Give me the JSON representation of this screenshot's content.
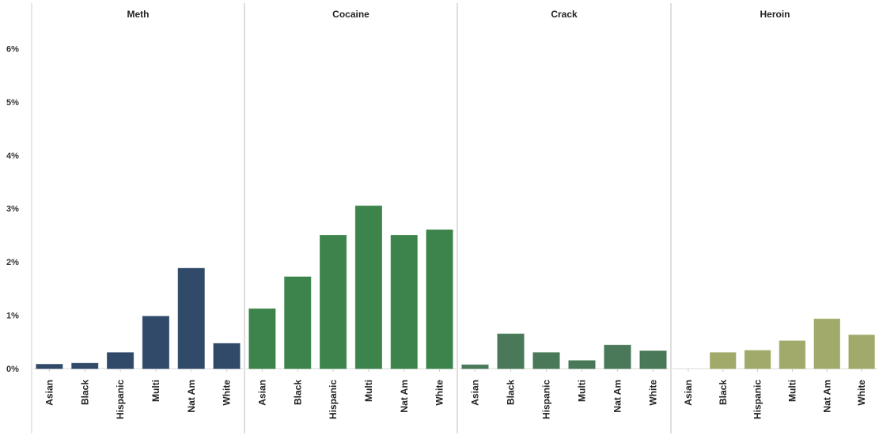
{
  "chart_data": {
    "type": "bar",
    "ylim": [
      0,
      6.2
    ],
    "y_ticks": [
      {
        "value": 0,
        "label": "0%"
      },
      {
        "value": 1,
        "label": "1%"
      },
      {
        "value": 2,
        "label": "2%"
      },
      {
        "value": 3,
        "label": "3%"
      },
      {
        "value": 4,
        "label": "4%"
      },
      {
        "value": 5,
        "label": "5%"
      },
      {
        "value": 6,
        "label": "6%"
      }
    ],
    "grid": false,
    "categories": [
      "Asian",
      "Black",
      "Hispanic",
      "Multi",
      "Nat Am",
      "White"
    ],
    "panels": [
      {
        "title": "Meth",
        "color": "#1f3b5c",
        "values": [
          0.08,
          0.1,
          0.3,
          0.98,
          1.88,
          0.47
        ]
      },
      {
        "title": "Cocaine",
        "color": "#2b7a3c",
        "values": [
          1.12,
          1.72,
          2.5,
          3.05,
          2.5,
          2.6
        ]
      },
      {
        "title": "Crack",
        "color": "#3a6e4a",
        "values": [
          0.07,
          0.65,
          0.3,
          0.15,
          0.44,
          0.33
        ]
      },
      {
        "title": "Heroin",
        "color": "#9aa35e",
        "values": [
          0,
          0.3,
          0.34,
          0.52,
          0.93,
          0.63
        ]
      }
    ]
  }
}
